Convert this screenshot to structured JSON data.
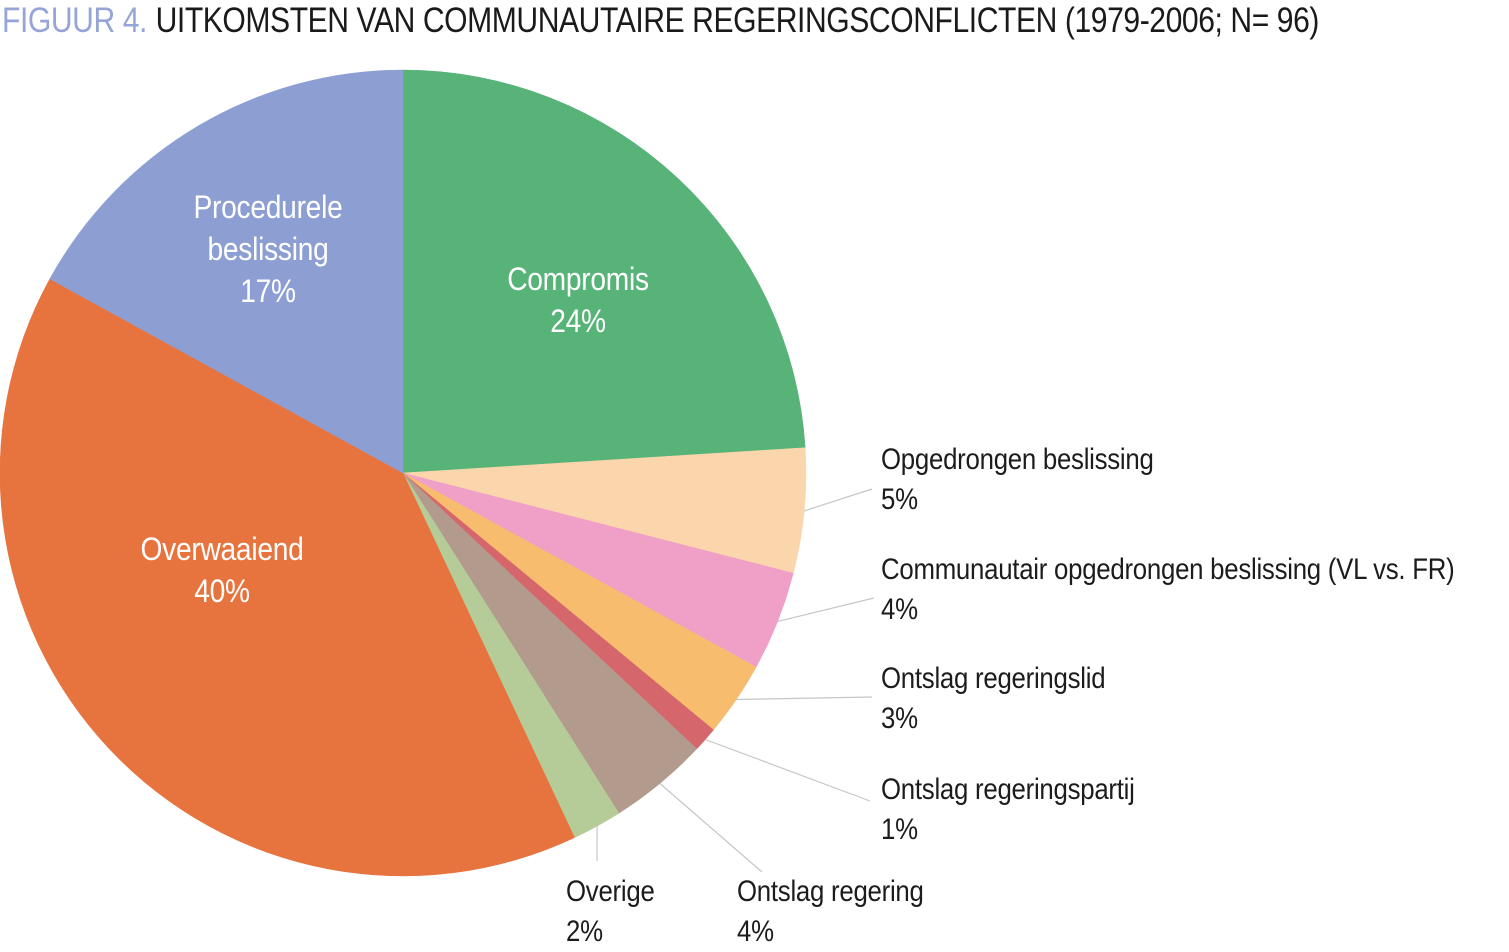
{
  "title": {
    "figure_label": "FIGUUR 4.",
    "text": "UITKOMSTEN VAN COMMUNAUTAIRE REGERINGSCONFLICTEN (1979-2006; N= 96)"
  },
  "chart_data": {
    "type": "pie",
    "title": "FIGUUR 4. UITKOMSTEN VAN COMMUNAUTAIRE REGERINGSCONFLICTEN (1979-2006; N= 96)",
    "sample_size_label": "N= 96",
    "period": "1979-2006",
    "start_angle_deg": 0,
    "direction": "clockwise",
    "legend_position": "none",
    "slices": [
      {
        "label": "Compromis",
        "value": 24,
        "pct_label": "24%",
        "color": "#57b377",
        "label_placement": "inside"
      },
      {
        "label": "Opgedrongen beslissing",
        "value": 5,
        "pct_label": "5%",
        "color": "#fbd6ac",
        "label_placement": "right"
      },
      {
        "label": "Communautair opgedrongen beslissing (VL vs. FR)",
        "value": 4,
        "pct_label": "4%",
        "color": "#f09fc6",
        "label_placement": "right"
      },
      {
        "label": "Ontslag regeringslid",
        "value": 3,
        "pct_label": "3%",
        "color": "#f7bc6e",
        "label_placement": "right"
      },
      {
        "label": "Ontslag regeringspartij",
        "value": 1,
        "pct_label": "1%",
        "color": "#d5666b",
        "label_placement": "right"
      },
      {
        "label": "Ontslag regering",
        "value": 4,
        "pct_label": "4%",
        "color": "#b29a8d",
        "label_placement": "bottom"
      },
      {
        "label": "Overige",
        "value": 2,
        "pct_label": "2%",
        "color": "#b6cc98",
        "label_placement": "bottom"
      },
      {
        "label": "Overwaaiend",
        "value": 40,
        "pct_label": "40%",
        "color": "#e7743f",
        "label_placement": "inside"
      },
      {
        "label": "Procedurele beslissing",
        "value": 17,
        "pct_label": "17%",
        "color": "#8d9ed3",
        "label_placement": "inside"
      }
    ],
    "colors": {
      "leader_line": "#c6c6c6",
      "title_accent": "#97a5d6",
      "text": "#1a1a1a"
    }
  }
}
